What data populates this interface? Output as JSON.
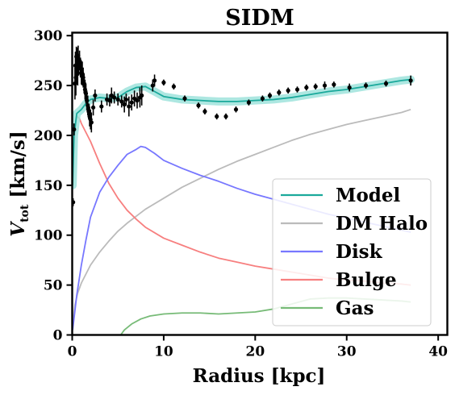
{
  "chart_data": {
    "type": "line",
    "title": "SIDM",
    "xlabel": "Radius [kpc]",
    "ylabel_main": "V",
    "ylabel_sub": "tot",
    "ylabel_unit": " [km/s]",
    "xlim": [
      0,
      41
    ],
    "ylim": [
      0,
      303
    ],
    "xticks": [
      0,
      10,
      20,
      30,
      40
    ],
    "yticks": [
      0,
      50,
      100,
      150,
      200,
      250,
      300
    ],
    "grid": false,
    "legend_position": "lower-right",
    "series": [
      {
        "name": "Model",
        "color": "#1aa99b",
        "band_color": "#9fe3dc",
        "band_width": 5,
        "points": [
          [
            0.05,
            150
          ],
          [
            0.2,
            200
          ],
          [
            0.5,
            222
          ],
          [
            1,
            226
          ],
          [
            1.5,
            232
          ],
          [
            2,
            236
          ],
          [
            3,
            238
          ],
          [
            4,
            237
          ],
          [
            5,
            238
          ],
          [
            6,
            244
          ],
          [
            7,
            248
          ],
          [
            8,
            249
          ],
          [
            9,
            244
          ],
          [
            10,
            239
          ],
          [
            12,
            236
          ],
          [
            14,
            235
          ],
          [
            16,
            234
          ],
          [
            18,
            234
          ],
          [
            20,
            235
          ],
          [
            22,
            236
          ],
          [
            24,
            238
          ],
          [
            26,
            241
          ],
          [
            28,
            244
          ],
          [
            30,
            246
          ],
          [
            32,
            249
          ],
          [
            34,
            252
          ],
          [
            36,
            255
          ],
          [
            37,
            256
          ]
        ]
      },
      {
        "name": "DM Halo",
        "color": "#bbbbbb",
        "points": [
          [
            0.05,
            10
          ],
          [
            0.3,
            30
          ],
          [
            0.6,
            42
          ],
          [
            1,
            52
          ],
          [
            2,
            70
          ],
          [
            3,
            83
          ],
          [
            4,
            94
          ],
          [
            5,
            104
          ],
          [
            6,
            112
          ],
          [
            7,
            119
          ],
          [
            8,
            126
          ],
          [
            10,
            137
          ],
          [
            12,
            148
          ],
          [
            14,
            157
          ],
          [
            16,
            166
          ],
          [
            18,
            174
          ],
          [
            20,
            181
          ],
          [
            22,
            188
          ],
          [
            24,
            195
          ],
          [
            26,
            201
          ],
          [
            28,
            206
          ],
          [
            30,
            211
          ],
          [
            32,
            215
          ],
          [
            34,
            219
          ],
          [
            36,
            223
          ],
          [
            37,
            226
          ]
        ]
      },
      {
        "name": "Disk",
        "color": "#7777ff",
        "points": [
          [
            0.05,
            5
          ],
          [
            0.5,
            40
          ],
          [
            1,
            70
          ],
          [
            1.5,
            95
          ],
          [
            2,
            118
          ],
          [
            3,
            143
          ],
          [
            4,
            158
          ],
          [
            5,
            170
          ],
          [
            6,
            181
          ],
          [
            7,
            186
          ],
          [
            7.5,
            189
          ],
          [
            8,
            188
          ],
          [
            9,
            182
          ],
          [
            10,
            175
          ],
          [
            12,
            167
          ],
          [
            14,
            160
          ],
          [
            16,
            154
          ],
          [
            18,
            147
          ],
          [
            20,
            141
          ],
          [
            22,
            136
          ],
          [
            24,
            131
          ],
          [
            26,
            126
          ],
          [
            28,
            121
          ],
          [
            30,
            117
          ],
          [
            32,
            113
          ],
          [
            34,
            109
          ],
          [
            36,
            105
          ],
          [
            37,
            103
          ]
        ]
      },
      {
        "name": "Bulge",
        "color": "#f77f7f",
        "points": [
          [
            0.05,
            165
          ],
          [
            0.3,
            210
          ],
          [
            0.5,
            219
          ],
          [
            0.8,
            217
          ],
          [
            1,
            212
          ],
          [
            1.5,
            203
          ],
          [
            2,
            194
          ],
          [
            3,
            172
          ],
          [
            4,
            152
          ],
          [
            5,
            137
          ],
          [
            6,
            125
          ],
          [
            7,
            116
          ],
          [
            8,
            108
          ],
          [
            10,
            97
          ],
          [
            12,
            90
          ],
          [
            14,
            83
          ],
          [
            16,
            77
          ],
          [
            18,
            73
          ],
          [
            20,
            69
          ],
          [
            22,
            66
          ],
          [
            24,
            63
          ],
          [
            26,
            60
          ],
          [
            28,
            57
          ],
          [
            30,
            55
          ],
          [
            32,
            54
          ],
          [
            34,
            52
          ],
          [
            36,
            51
          ],
          [
            37,
            50
          ]
        ]
      },
      {
        "name": "Gas",
        "color": "#77bb77",
        "points": [
          [
            5.3,
            0
          ],
          [
            5.7,
            5
          ],
          [
            6.5,
            11
          ],
          [
            7.5,
            16
          ],
          [
            8.5,
            19
          ],
          [
            10,
            21
          ],
          [
            12,
            22
          ],
          [
            14,
            22
          ],
          [
            16,
            21
          ],
          [
            18,
            22
          ],
          [
            20,
            23
          ],
          [
            22,
            26
          ],
          [
            24,
            31
          ],
          [
            26,
            36
          ],
          [
            28,
            37
          ],
          [
            30,
            37
          ],
          [
            32,
            36
          ],
          [
            34,
            35
          ],
          [
            36,
            34
          ],
          [
            37,
            33
          ]
        ]
      }
    ],
    "observed": {
      "color": "#000000",
      "points": [
        {
          "x": 0.1,
          "y": 133,
          "err": 4
        },
        {
          "x": 0.2,
          "y": 206,
          "err": 6
        },
        {
          "x": 0.3,
          "y": 252,
          "err": 16
        },
        {
          "x": 0.35,
          "y": 270,
          "err": 14
        },
        {
          "x": 0.4,
          "y": 258,
          "err": 18
        },
        {
          "x": 0.45,
          "y": 279,
          "err": 10
        },
        {
          "x": 0.5,
          "y": 265,
          "err": 14
        },
        {
          "x": 0.55,
          "y": 276,
          "err": 12
        },
        {
          "x": 0.6,
          "y": 262,
          "err": 12
        },
        {
          "x": 0.65,
          "y": 280,
          "err": 10
        },
        {
          "x": 0.7,
          "y": 270,
          "err": 10
        },
        {
          "x": 0.8,
          "y": 275,
          "err": 10
        },
        {
          "x": 0.9,
          "y": 268,
          "err": 10
        },
        {
          "x": 1.0,
          "y": 263,
          "err": 12
        },
        {
          "x": 1.1,
          "y": 262,
          "err": 12
        },
        {
          "x": 1.2,
          "y": 258,
          "err": 10
        },
        {
          "x": 1.3,
          "y": 252,
          "err": 10
        },
        {
          "x": 1.4,
          "y": 246,
          "err": 10
        },
        {
          "x": 1.5,
          "y": 242,
          "err": 10
        },
        {
          "x": 1.6,
          "y": 235,
          "err": 10
        },
        {
          "x": 1.7,
          "y": 230,
          "err": 10
        },
        {
          "x": 1.8,
          "y": 224,
          "err": 8
        },
        {
          "x": 1.9,
          "y": 219,
          "err": 10
        },
        {
          "x": 2.0,
          "y": 216,
          "err": 10
        },
        {
          "x": 2.1,
          "y": 213,
          "err": 10
        },
        {
          "x": 2.3,
          "y": 228,
          "err": 8
        },
        {
          "x": 2.5,
          "y": 240,
          "err": 6
        },
        {
          "x": 3.2,
          "y": 229,
          "err": 6
        },
        {
          "x": 3.8,
          "y": 236,
          "err": 6
        },
        {
          "x": 4.1,
          "y": 235,
          "err": 6
        },
        {
          "x": 4.3,
          "y": 240,
          "err": 8
        },
        {
          "x": 4.6,
          "y": 238,
          "err": 6
        },
        {
          "x": 5.0,
          "y": 236,
          "err": 6
        },
        {
          "x": 5.4,
          "y": 234,
          "err": 6
        },
        {
          "x": 5.7,
          "y": 231,
          "err": 8
        },
        {
          "x": 5.9,
          "y": 236,
          "err": 6
        },
        {
          "x": 6.2,
          "y": 229,
          "err": 10
        },
        {
          "x": 6.5,
          "y": 233,
          "err": 8
        },
        {
          "x": 6.8,
          "y": 237,
          "err": 8
        },
        {
          "x": 7.1,
          "y": 235,
          "err": 8
        },
        {
          "x": 7.4,
          "y": 238,
          "err": 10
        },
        {
          "x": 7.6,
          "y": 240,
          "err": 10
        },
        {
          "x": 8.8,
          "y": 250,
          "err": 6
        },
        {
          "x": 9.0,
          "y": 255,
          "err": 6
        },
        {
          "x": 10.0,
          "y": 253,
          "err": 3
        },
        {
          "x": 11.1,
          "y": 249,
          "err": 3
        },
        {
          "x": 12.3,
          "y": 237,
          "err": 3
        },
        {
          "x": 13.8,
          "y": 230,
          "err": 3
        },
        {
          "x": 14.5,
          "y": 224,
          "err": 3
        },
        {
          "x": 15.8,
          "y": 219,
          "err": 3
        },
        {
          "x": 16.8,
          "y": 219,
          "err": 3
        },
        {
          "x": 17.9,
          "y": 226,
          "err": 3
        },
        {
          "x": 19.3,
          "y": 233,
          "err": 3
        },
        {
          "x": 20.8,
          "y": 237,
          "err": 3
        },
        {
          "x": 21.6,
          "y": 240,
          "err": 3
        },
        {
          "x": 22.6,
          "y": 243,
          "err": 3
        },
        {
          "x": 23.6,
          "y": 245,
          "err": 3
        },
        {
          "x": 24.6,
          "y": 246,
          "err": 3
        },
        {
          "x": 25.6,
          "y": 248,
          "err": 3
        },
        {
          "x": 26.6,
          "y": 249,
          "err": 3
        },
        {
          "x": 27.6,
          "y": 250,
          "err": 4
        },
        {
          "x": 28.6,
          "y": 251,
          "err": 3
        },
        {
          "x": 30.3,
          "y": 248,
          "err": 4
        },
        {
          "x": 32.1,
          "y": 250,
          "err": 3
        },
        {
          "x": 34.3,
          "y": 252,
          "err": 3
        },
        {
          "x": 37.0,
          "y": 255,
          "err": 5
        }
      ]
    }
  }
}
